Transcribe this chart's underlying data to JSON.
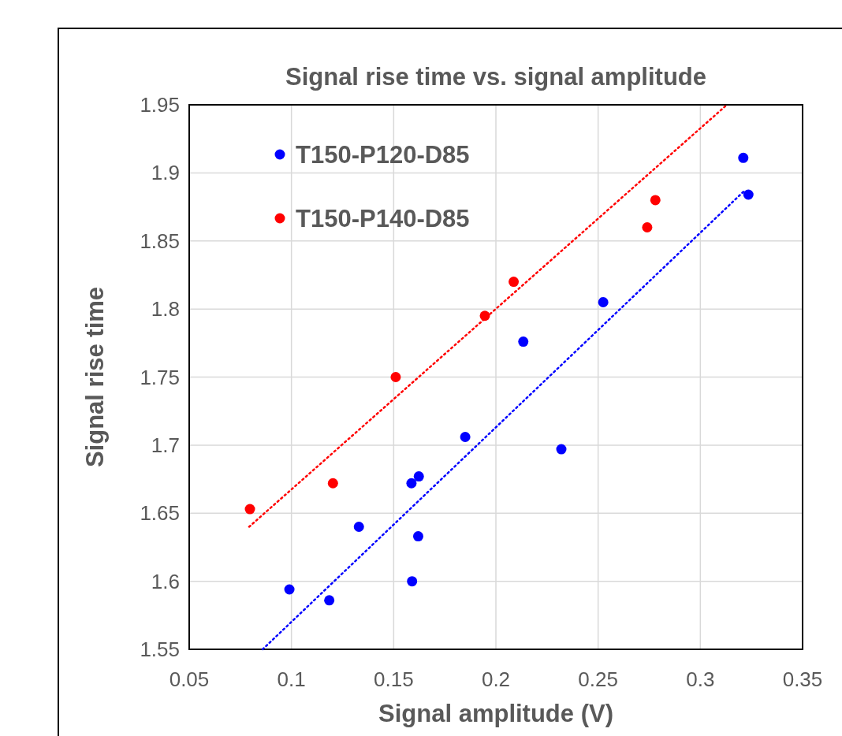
{
  "chart_data": {
    "type": "scatter",
    "title": "Signal rise time vs. signal amplitude",
    "xlabel": "Signal amplitude (V)",
    "ylabel": "Signal rise time",
    "xlim": [
      0.05,
      0.35
    ],
    "xticks": [
      0.05,
      0.1,
      0.15,
      0.2,
      0.25,
      0.3,
      0.35
    ],
    "ylim": [
      1.55,
      1.95
    ],
    "yticks": [
      1.55,
      1.6,
      1.65,
      1.7,
      1.75,
      1.8,
      1.85,
      1.9,
      1.95
    ],
    "grid": true,
    "legend": "top left",
    "marker": "circle",
    "series": [
      {
        "name": "T150-P120-D85",
        "color": "#0000ff",
        "x": [
          0.099,
          0.1185,
          0.133,
          0.1587,
          0.1623,
          0.162,
          0.159,
          0.185,
          0.2134,
          0.232,
          0.2525,
          0.321,
          0.3235
        ],
        "values": [
          1.594,
          1.586,
          1.64,
          1.672,
          1.677,
          1.633,
          1.6,
          1.706,
          1.776,
          1.697,
          1.805,
          1.911,
          1.884
        ]
      },
      {
        "name": "T150-P140-D85",
        "color": "#ff0000",
        "x": [
          0.0797,
          0.1203,
          0.151,
          0.1946,
          0.2087,
          0.274,
          0.278
        ],
        "values": [
          1.653,
          1.672,
          1.75,
          1.795,
          1.82,
          1.86,
          1.88
        ]
      },
      {
        "type": "line",
        "color": "#0000ff",
        "line_style": "dotted",
        "marker": "none",
        "x": [
          0.0859,
          0.322
        ],
        "values": [
          1.55,
          1.8875
        ]
      },
      {
        "type": "line",
        "color": "#ff0000",
        "line_style": "dotted",
        "marker": "none",
        "x": [
          0.0793,
          0.313
        ],
        "values": [
          1.64,
          1.95
        ]
      }
    ]
  }
}
